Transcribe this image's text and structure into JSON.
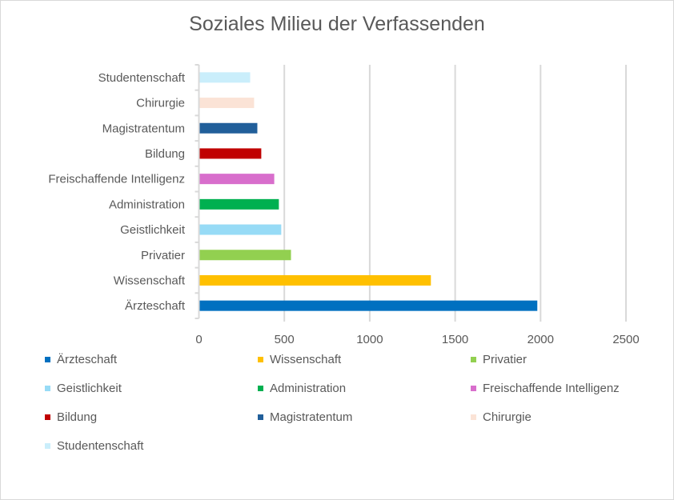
{
  "chart_data": {
    "type": "bar",
    "orientation": "horizontal",
    "title": "Soziales Milieu der Verfassenden",
    "xlabel": "",
    "ylabel": "",
    "xlim": [
      0,
      2500
    ],
    "xticks": [
      "0",
      "500",
      "1000",
      "1500",
      "2000",
      "2500"
    ],
    "tick_values": [
      0,
      500,
      1000,
      1500,
      2000,
      2500
    ],
    "grid": true,
    "legend_position": "bottom",
    "categories": [
      "Ärzteschaft",
      "Wissenschaft",
      "Privatier",
      "Geistlichkeit",
      "Administration",
      "Freischaffende Intelligenz",
      "Bildung",
      "Magistratentum",
      "Chirurgie",
      "Studentenschaft"
    ],
    "values": [
      1981,
      1358,
      539,
      482,
      468,
      441,
      365,
      342,
      323,
      300
    ],
    "colors": [
      "#0070c0",
      "#ffc000",
      "#92d050",
      "#97dbf6",
      "#00b050",
      "#d86ecc",
      "#c00000",
      "#215f9a",
      "#fbe3d6",
      "#caeefb"
    ]
  }
}
